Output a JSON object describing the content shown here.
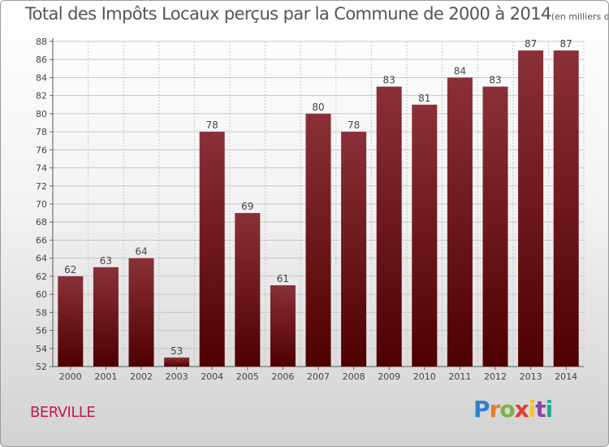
{
  "header": {
    "title": "Total des Impôts Locaux perçus par la Commune de 2000 à 2014",
    "unit": "(en milliers d'€)"
  },
  "footer": {
    "commune": "BERVILLE",
    "logo_letters": [
      "P",
      "r",
      "o",
      "x",
      "i",
      "t",
      "i"
    ],
    "logo_colors": [
      "#2e7fd1",
      "#e67e22",
      "#7cb342",
      "#e53935",
      "#fbc02d",
      "#8e44ad",
      "#26a69a"
    ]
  },
  "colors": {
    "bar_top": "#8a3038",
    "bar_bottom": "#4e0000",
    "grid": "#c8c8c8",
    "text": "#444444"
  },
  "chart_data": {
    "type": "bar",
    "title": "Total des Impôts Locaux perçus par la Commune de 2000 à 2014",
    "xlabel": "",
    "ylabel": "en milliers d'€",
    "categories": [
      "2000",
      "2001",
      "2002",
      "2003",
      "2004",
      "2005",
      "2006",
      "2007",
      "2008",
      "2009",
      "2010",
      "2011",
      "2012",
      "2013",
      "2014"
    ],
    "values": [
      62,
      63,
      64,
      53,
      78,
      69,
      61,
      80,
      78,
      83,
      81,
      84,
      83,
      87,
      87
    ],
    "data_labels": [
      "62",
      "63",
      "64",
      "53",
      "78",
      "69",
      "61",
      "80",
      "78",
      "83",
      "81",
      "84",
      "83",
      "87",
      "87"
    ],
    "ylim": [
      52,
      88
    ],
    "yticks": [
      52,
      54,
      56,
      58,
      60,
      62,
      64,
      66,
      68,
      70,
      72,
      74,
      76,
      78,
      80,
      82,
      84,
      86,
      88
    ],
    "grid": true
  }
}
